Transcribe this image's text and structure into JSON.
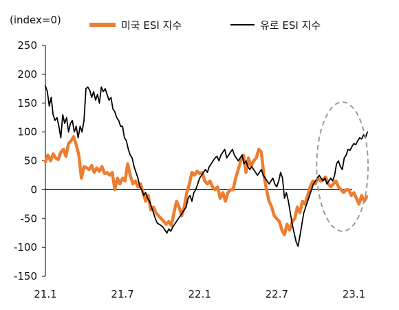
{
  "chart_data": {
    "type": "line",
    "unit_label": "(index=0)",
    "y_ticks": [
      250,
      200,
      150,
      100,
      50,
      0,
      -50,
      -100,
      -150
    ],
    "ylim": [
      -150,
      250
    ],
    "x_ticks": [
      "21.1",
      "21.7",
      "22.1",
      "22.7",
      "23.1"
    ],
    "x_tick_positions": [
      0,
      6,
      12,
      18,
      24
    ],
    "xlim": [
      0,
      25.1
    ],
    "zero_line": true,
    "grid": false,
    "legend_position": "top",
    "highlight": {
      "shape": "dashed-ellipse",
      "center": [
        23.1,
        40
      ],
      "radii": [
        2.0,
        112
      ],
      "color": "#999999"
    },
    "series": [
      {
        "name": "미국 ESI 지수",
        "color": "#ED7D31",
        "points": [
          [
            0.0,
            48
          ],
          [
            0.2,
            60
          ],
          [
            0.4,
            50
          ],
          [
            0.6,
            62
          ],
          [
            0.8,
            55
          ],
          [
            1.0,
            52
          ],
          [
            1.2,
            65
          ],
          [
            1.4,
            70
          ],
          [
            1.6,
            58
          ],
          [
            1.8,
            80
          ],
          [
            2.0,
            85
          ],
          [
            2.2,
            92
          ],
          [
            2.4,
            78
          ],
          [
            2.6,
            60
          ],
          [
            2.8,
            20
          ],
          [
            3.0,
            40
          ],
          [
            3.2,
            38
          ],
          [
            3.4,
            35
          ],
          [
            3.6,
            42
          ],
          [
            3.8,
            30
          ],
          [
            4.0,
            38
          ],
          [
            4.2,
            32
          ],
          [
            4.4,
            40
          ],
          [
            4.6,
            28
          ],
          [
            4.8,
            30
          ],
          [
            5.0,
            25
          ],
          [
            5.2,
            30
          ],
          [
            5.4,
            0
          ],
          [
            5.6,
            20
          ],
          [
            5.8,
            10
          ],
          [
            6.0,
            20
          ],
          [
            6.2,
            15
          ],
          [
            6.4,
            45
          ],
          [
            6.6,
            25
          ],
          [
            6.8,
            10
          ],
          [
            7.0,
            15
          ],
          [
            7.2,
            5
          ],
          [
            7.4,
            10
          ],
          [
            7.6,
            -5
          ],
          [
            7.8,
            -20
          ],
          [
            8.0,
            -10
          ],
          [
            8.2,
            -35
          ],
          [
            8.4,
            -30
          ],
          [
            8.6,
            -40
          ],
          [
            8.8,
            -45
          ],
          [
            9.0,
            -50
          ],
          [
            9.2,
            -55
          ],
          [
            9.4,
            -60
          ],
          [
            9.6,
            -55
          ],
          [
            9.8,
            -62
          ],
          [
            10.0,
            -40
          ],
          [
            10.2,
            -20
          ],
          [
            10.4,
            -30
          ],
          [
            10.6,
            -45
          ],
          [
            10.8,
            -30
          ],
          [
            11.0,
            -5
          ],
          [
            11.2,
            10
          ],
          [
            11.4,
            30
          ],
          [
            11.6,
            25
          ],
          [
            11.8,
            32
          ],
          [
            12.0,
            28
          ],
          [
            12.2,
            30
          ],
          [
            12.4,
            15
          ],
          [
            12.6,
            10
          ],
          [
            12.8,
            15
          ],
          [
            13.0,
            5
          ],
          [
            13.2,
            0
          ],
          [
            13.4,
            5
          ],
          [
            13.6,
            -15
          ],
          [
            13.8,
            -5
          ],
          [
            14.0,
            -20
          ],
          [
            14.2,
            -5
          ],
          [
            14.4,
            0
          ],
          [
            14.6,
            0
          ],
          [
            14.8,
            20
          ],
          [
            15.0,
            35
          ],
          [
            15.2,
            50
          ],
          [
            15.4,
            60
          ],
          [
            15.6,
            30
          ],
          [
            15.8,
            55
          ],
          [
            16.0,
            40
          ],
          [
            16.2,
            50
          ],
          [
            16.4,
            55
          ],
          [
            16.6,
            70
          ],
          [
            16.8,
            65
          ],
          [
            17.0,
            25
          ],
          [
            17.2,
            0
          ],
          [
            17.4,
            -20
          ],
          [
            17.6,
            -30
          ],
          [
            17.8,
            -45
          ],
          [
            18.0,
            -50
          ],
          [
            18.2,
            -55
          ],
          [
            18.4,
            -70
          ],
          [
            18.6,
            -78
          ],
          [
            18.8,
            -60
          ],
          [
            19.0,
            -70
          ],
          [
            19.2,
            -55
          ],
          [
            19.4,
            -50
          ],
          [
            19.6,
            -30
          ],
          [
            19.8,
            -40
          ],
          [
            20.0,
            -20
          ],
          [
            20.2,
            -25
          ],
          [
            20.4,
            -10
          ],
          [
            20.6,
            5
          ],
          [
            20.8,
            15
          ],
          [
            21.0,
            10
          ],
          [
            21.2,
            20
          ],
          [
            21.4,
            15
          ],
          [
            21.6,
            18
          ],
          [
            21.8,
            22
          ],
          [
            22.0,
            10
          ],
          [
            22.2,
            5
          ],
          [
            22.4,
            10
          ],
          [
            22.6,
            15
          ],
          [
            22.8,
            5
          ],
          [
            23.0,
            0
          ],
          [
            23.2,
            -5
          ],
          [
            23.4,
            0
          ],
          [
            23.6,
            0
          ],
          [
            23.8,
            -10
          ],
          [
            24.0,
            -5
          ],
          [
            24.2,
            -15
          ],
          [
            24.4,
            -25
          ],
          [
            24.6,
            -10
          ],
          [
            24.8,
            -20
          ],
          [
            25.0,
            -12
          ]
        ]
      },
      {
        "name": "유로 ESI 지수",
        "color": "#000000",
        "points": [
          [
            0.0,
            180
          ],
          [
            0.15,
            170
          ],
          [
            0.3,
            145
          ],
          [
            0.45,
            160
          ],
          [
            0.6,
            130
          ],
          [
            0.75,
            120
          ],
          [
            0.9,
            125
          ],
          [
            1.05,
            110
          ],
          [
            1.2,
            90
          ],
          [
            1.35,
            130
          ],
          [
            1.5,
            115
          ],
          [
            1.65,
            125
          ],
          [
            1.8,
            100
          ],
          [
            1.95,
            115
          ],
          [
            2.1,
            120
          ],
          [
            2.25,
            100
          ],
          [
            2.4,
            110
          ],
          [
            2.55,
            90
          ],
          [
            2.7,
            110
          ],
          [
            2.85,
            100
          ],
          [
            3.0,
            120
          ],
          [
            3.15,
            175
          ],
          [
            3.3,
            178
          ],
          [
            3.45,
            172
          ],
          [
            3.6,
            160
          ],
          [
            3.75,
            170
          ],
          [
            3.9,
            155
          ],
          [
            4.05,
            165
          ],
          [
            4.2,
            150
          ],
          [
            4.35,
            178
          ],
          [
            4.5,
            170
          ],
          [
            4.65,
            175
          ],
          [
            4.8,
            165
          ],
          [
            4.95,
            155
          ],
          [
            5.1,
            160
          ],
          [
            5.25,
            140
          ],
          [
            5.4,
            135
          ],
          [
            5.55,
            125
          ],
          [
            5.7,
            120
          ],
          [
            5.85,
            110
          ],
          [
            6.0,
            110
          ],
          [
            6.15,
            90
          ],
          [
            6.3,
            85
          ],
          [
            6.45,
            70
          ],
          [
            6.6,
            60
          ],
          [
            6.75,
            55
          ],
          [
            6.9,
            40
          ],
          [
            7.05,
            30
          ],
          [
            7.2,
            20
          ],
          [
            7.35,
            5
          ],
          [
            7.5,
            0
          ],
          [
            7.65,
            -10
          ],
          [
            7.8,
            -5
          ],
          [
            7.95,
            -15
          ],
          [
            8.1,
            -20
          ],
          [
            8.25,
            -30
          ],
          [
            8.4,
            -40
          ],
          [
            8.55,
            -50
          ],
          [
            8.7,
            -58
          ],
          [
            8.85,
            -60
          ],
          [
            9.0,
            -62
          ],
          [
            9.15,
            -65
          ],
          [
            9.3,
            -70
          ],
          [
            9.45,
            -75
          ],
          [
            9.6,
            -68
          ],
          [
            9.75,
            -72
          ],
          [
            9.9,
            -65
          ],
          [
            10.05,
            -60
          ],
          [
            10.2,
            -55
          ],
          [
            10.35,
            -50
          ],
          [
            10.5,
            -45
          ],
          [
            10.65,
            -40
          ],
          [
            10.8,
            -35
          ],
          [
            10.95,
            -30
          ],
          [
            11.1,
            -15
          ],
          [
            11.25,
            -10
          ],
          [
            11.4,
            -20
          ],
          [
            11.55,
            -5
          ],
          [
            11.7,
            0
          ],
          [
            11.85,
            10
          ],
          [
            12.0,
            20
          ],
          [
            12.15,
            25
          ],
          [
            12.3,
            30
          ],
          [
            12.45,
            35
          ],
          [
            12.6,
            30
          ],
          [
            12.75,
            40
          ],
          [
            12.9,
            45
          ],
          [
            13.05,
            50
          ],
          [
            13.2,
            55
          ],
          [
            13.35,
            58
          ],
          [
            13.5,
            50
          ],
          [
            13.65,
            60
          ],
          [
            13.8,
            65
          ],
          [
            13.95,
            70
          ],
          [
            14.1,
            55
          ],
          [
            14.25,
            60
          ],
          [
            14.4,
            65
          ],
          [
            14.55,
            70
          ],
          [
            14.7,
            60
          ],
          [
            14.85,
            55
          ],
          [
            15.0,
            50
          ],
          [
            15.15,
            55
          ],
          [
            15.3,
            60
          ],
          [
            15.45,
            45
          ],
          [
            15.6,
            50
          ],
          [
            15.75,
            40
          ],
          [
            15.9,
            35
          ],
          [
            16.05,
            40
          ],
          [
            16.2,
            35
          ],
          [
            16.35,
            30
          ],
          [
            16.5,
            25
          ],
          [
            16.65,
            30
          ],
          [
            16.8,
            35
          ],
          [
            16.95,
            25
          ],
          [
            17.1,
            20
          ],
          [
            17.25,
            15
          ],
          [
            17.4,
            10
          ],
          [
            17.55,
            15
          ],
          [
            17.7,
            20
          ],
          [
            17.85,
            10
          ],
          [
            18.0,
            5
          ],
          [
            18.15,
            15
          ],
          [
            18.3,
            30
          ],
          [
            18.45,
            20
          ],
          [
            18.6,
            -15
          ],
          [
            18.75,
            -5
          ],
          [
            18.9,
            -20
          ],
          [
            19.05,
            -40
          ],
          [
            19.2,
            -60
          ],
          [
            19.35,
            -75
          ],
          [
            19.5,
            -90
          ],
          [
            19.65,
            -98
          ],
          [
            19.8,
            -80
          ],
          [
            19.95,
            -60
          ],
          [
            20.1,
            -40
          ],
          [
            20.25,
            -30
          ],
          [
            20.4,
            -20
          ],
          [
            20.55,
            -10
          ],
          [
            20.7,
            0
          ],
          [
            20.85,
            10
          ],
          [
            21.0,
            15
          ],
          [
            21.15,
            20
          ],
          [
            21.3,
            25
          ],
          [
            21.45,
            20
          ],
          [
            21.6,
            15
          ],
          [
            21.75,
            20
          ],
          [
            21.9,
            10
          ],
          [
            22.05,
            15
          ],
          [
            22.2,
            20
          ],
          [
            22.35,
            15
          ],
          [
            22.5,
            25
          ],
          [
            22.65,
            45
          ],
          [
            22.8,
            50
          ],
          [
            22.95,
            40
          ],
          [
            23.1,
            35
          ],
          [
            23.25,
            55
          ],
          [
            23.4,
            60
          ],
          [
            23.55,
            70
          ],
          [
            23.7,
            68
          ],
          [
            23.85,
            75
          ],
          [
            24.0,
            80
          ],
          [
            24.15,
            78
          ],
          [
            24.3,
            85
          ],
          [
            24.45,
            90
          ],
          [
            24.6,
            88
          ],
          [
            24.75,
            95
          ],
          [
            24.9,
            90
          ],
          [
            25.05,
            100
          ]
        ]
      }
    ]
  }
}
